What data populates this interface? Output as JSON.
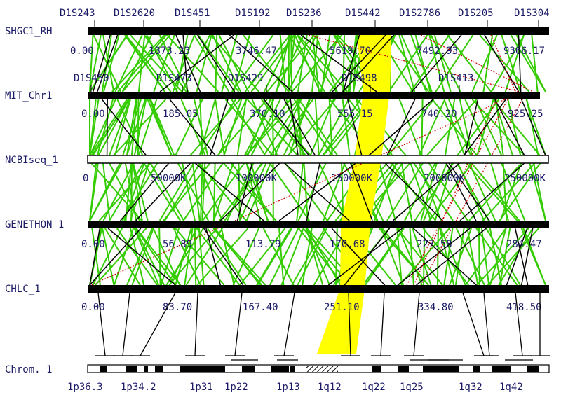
{
  "maps": [
    {
      "id": "shgc1",
      "name": "SHGC1_RH",
      "scale_max": 9366.17,
      "ticks": [
        "0.00",
        "1873.23",
        "3746.47",
        "5619.70",
        "7492.93",
        "9366.17"
      ],
      "markers": [
        "D1S243",
        "D1S2620",
        "D1S451",
        "D1S192",
        "D1S236",
        "D1S442",
        "D1S2786",
        "D1S205",
        "D1S304"
      ]
    },
    {
      "id": "mit",
      "name": "MIT_Chr1",
      "scale_max": 925.25,
      "ticks": [
        "0.00",
        "185.05",
        "370.10",
        "555.15",
        "740.20",
        "925.25"
      ],
      "markers": [
        "D1S450",
        "D1S473",
        "D1S429",
        "D1S498",
        "D1S413"
      ]
    },
    {
      "id": "ncbi",
      "name": "NCBIseq_1",
      "scale_max": 250000,
      "ticks": [
        "0",
        "50000K",
        "100000K",
        "150000K",
        "200000K",
        "250000K"
      ],
      "markers": []
    },
    {
      "id": "genethon",
      "name": "GENETHON_1",
      "scale_max": 284.47,
      "ticks": [
        "0.00",
        "56.89",
        "113.79",
        "170.68",
        "227.58",
        "284.47"
      ],
      "markers": []
    },
    {
      "id": "chlc",
      "name": "CHLC_1",
      "scale_max": 418.5,
      "ticks": [
        "0.00",
        "83.70",
        "167.40",
        "251.10",
        "334.80",
        "418.50"
      ],
      "markers": []
    }
  ],
  "chromosome": {
    "name": "Chrom. 1",
    "bands": [
      "1p36.3",
      "1p34.2",
      "1p31",
      "1p22",
      "1p13",
      "1q12",
      "1q22",
      "1q25",
      "1q32",
      "1q42"
    ]
  },
  "colors": {
    "map_bar": "#000000",
    "label_text": "#1a1a66",
    "marker_link": "#33cc00",
    "highlight_band": "#ffff00",
    "inversion_link": "#cc0000",
    "anchor_link": "#000000"
  }
}
